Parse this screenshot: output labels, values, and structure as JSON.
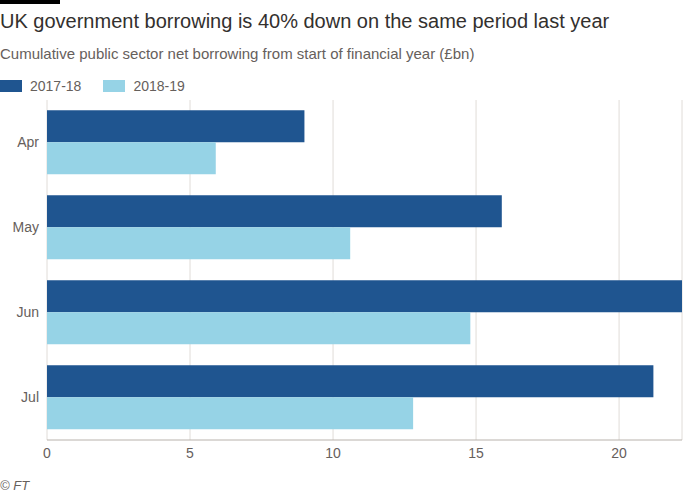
{
  "chart_data": {
    "type": "bar",
    "orientation": "horizontal",
    "title": "UK government borrowing is 40% down on the same period last year",
    "subtitle": "Cumulative public sector net borrowing from start of financial year (£bn)",
    "source": "© FT",
    "categories": [
      "Apr",
      "May",
      "Jun",
      "Jul"
    ],
    "series": [
      {
        "name": "2017-18",
        "color": "#1f5590",
        "values": [
          9.0,
          15.9,
          22.2,
          21.2
        ]
      },
      {
        "name": "2018-19",
        "color": "#96d3e6",
        "values": [
          5.9,
          10.6,
          14.8,
          12.8
        ]
      }
    ],
    "xlim": [
      0,
      22.2
    ],
    "xticks": [
      0,
      5,
      10,
      15,
      20
    ],
    "grid": true,
    "legend": "top-left"
  }
}
